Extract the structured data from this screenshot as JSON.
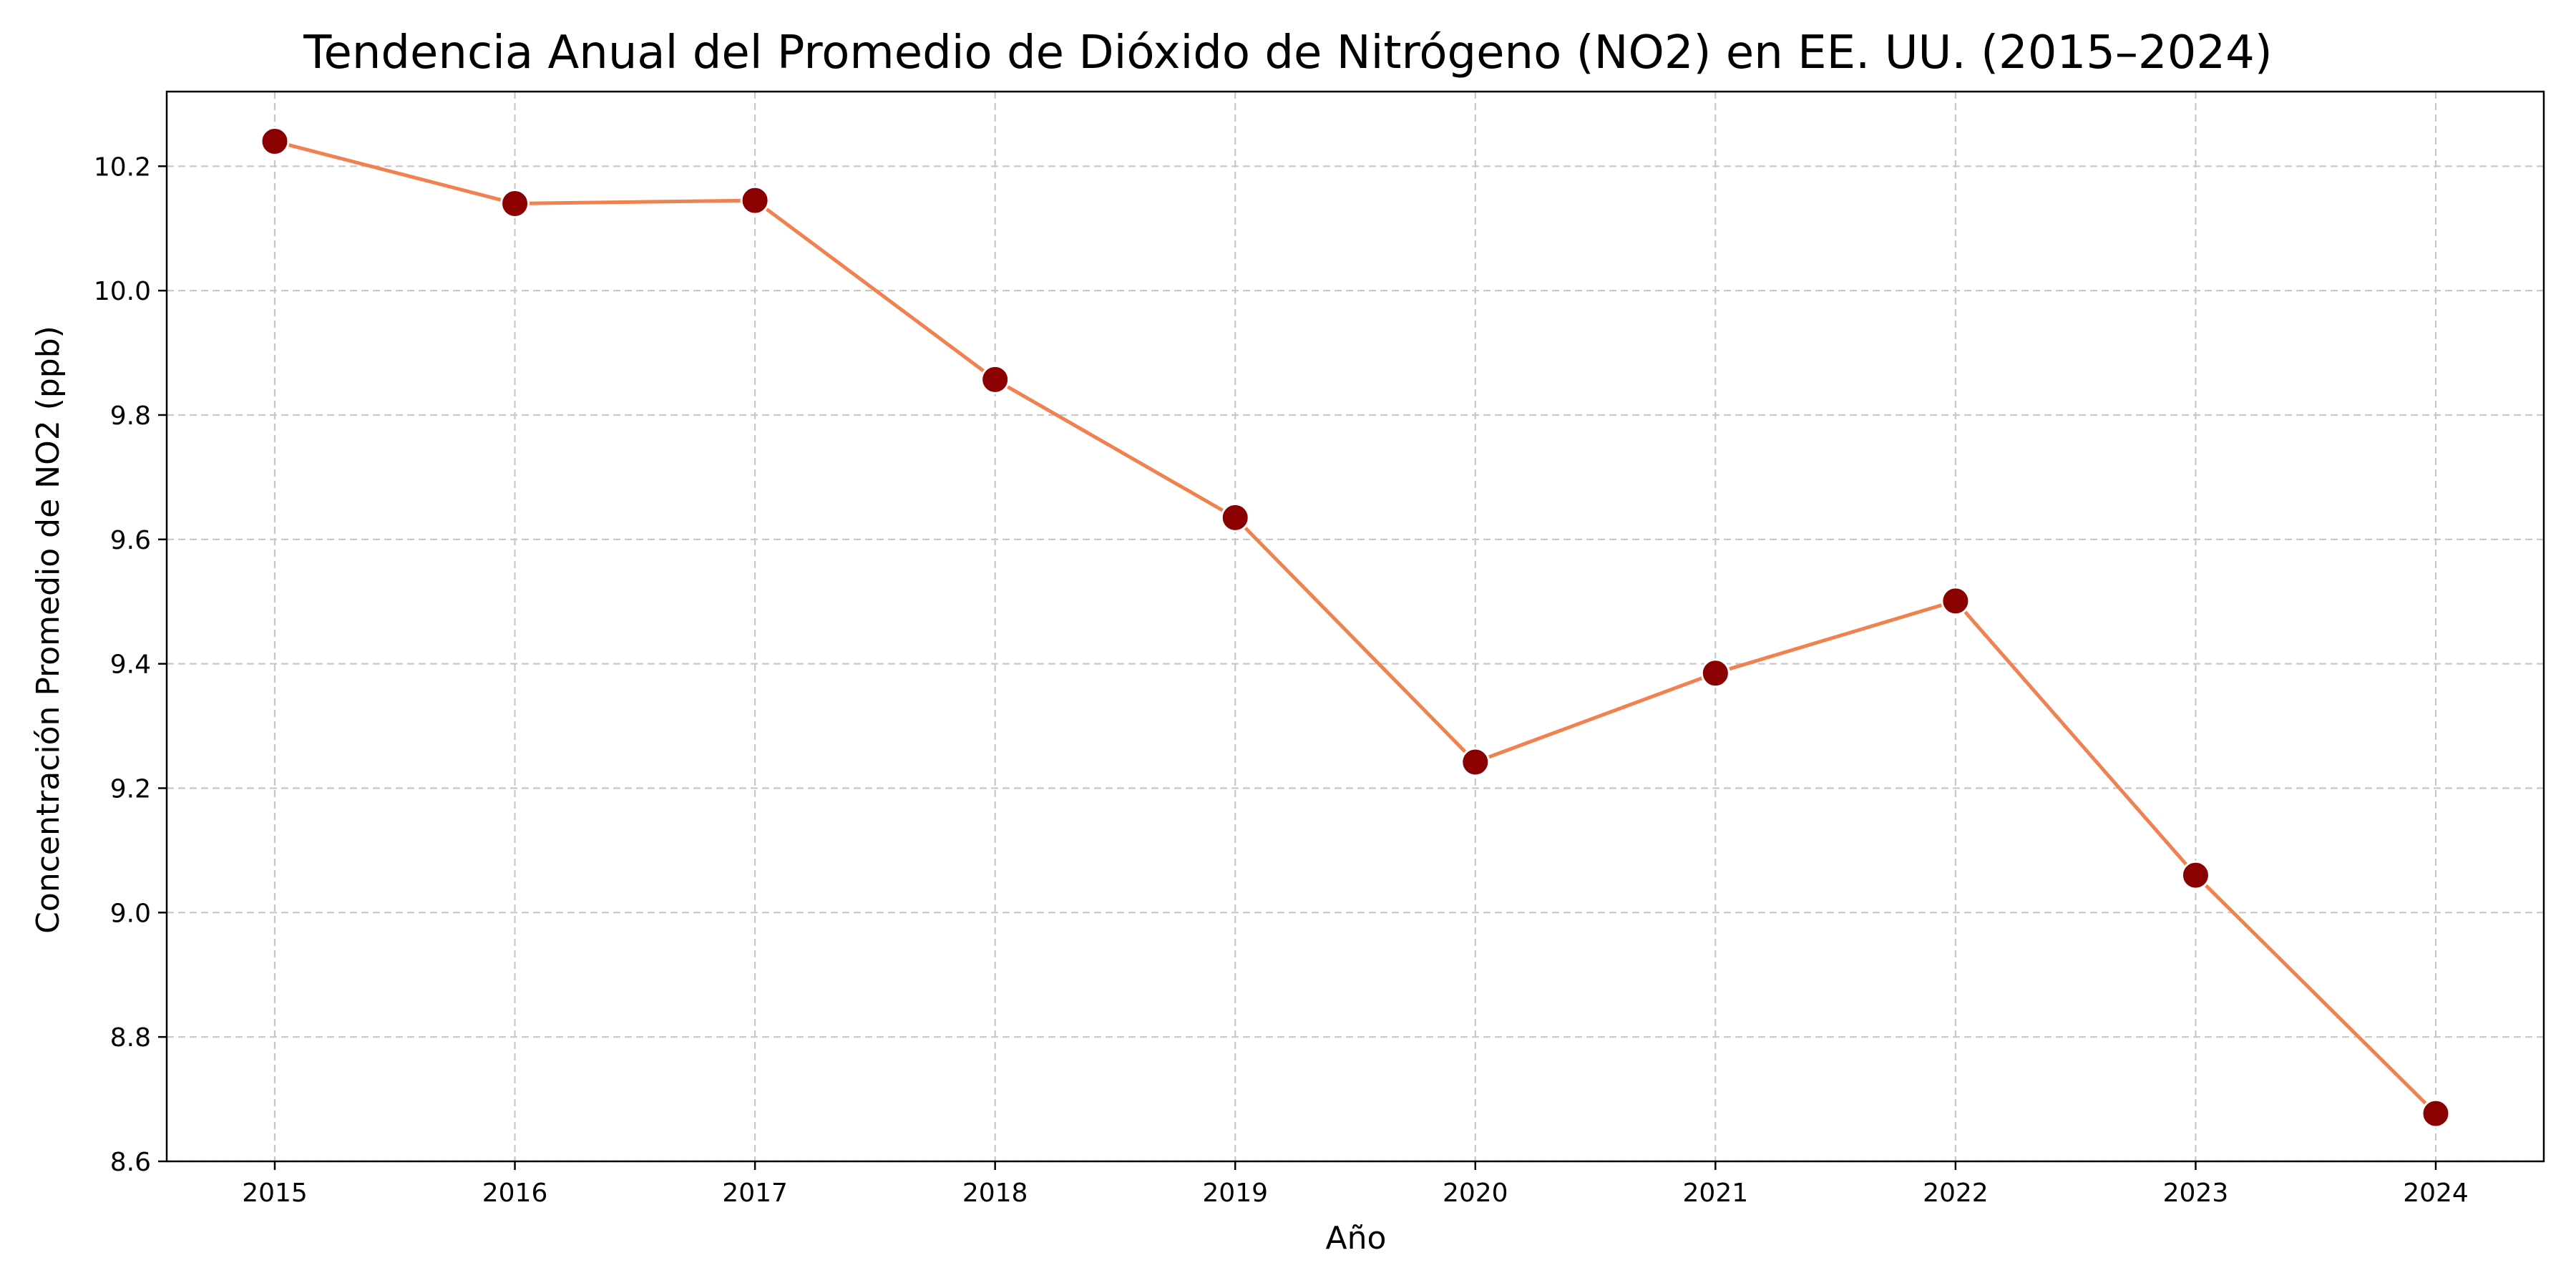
{
  "chart_data": {
    "type": "line",
    "title": "Tendencia Anual del Promedio de Dióxido de Nitrógeno (NO2) en EE. UU. (2015–2024)",
    "xlabel": "Año",
    "ylabel": "Concentración Promedio de NO2 (ppb)",
    "x": [
      2015,
      2016,
      2017,
      2018,
      2019,
      2020,
      2021,
      2022,
      2023,
      2024
    ],
    "x_tick_labels": [
      "2015",
      "2016",
      "2017",
      "2018",
      "2019",
      "2020",
      "2021",
      "2022",
      "2023",
      "2024"
    ],
    "series": [
      {
        "values": [
          10.24,
          10.14,
          10.145,
          9.857,
          9.635,
          9.242,
          9.385,
          9.501,
          9.06,
          8.677
        ]
      }
    ],
    "ylim": [
      8.6,
      10.32
    ],
    "xlim": [
      2014.55,
      2024.45
    ],
    "y_ticks": [
      8.6,
      8.8,
      9.0,
      9.2,
      9.4,
      9.6,
      9.8,
      10.0,
      10.2
    ],
    "y_tick_labels": [
      "8.6",
      "8.8",
      "9.0",
      "9.2",
      "9.4",
      "9.6",
      "9.8",
      "10.0",
      "10.2"
    ],
    "grid": true,
    "grid_style": "dashed",
    "colors": {
      "line": "#f08150",
      "marker_fill": "#8b0000",
      "marker_edge": "#ffffff",
      "grid": "#c8c8c8",
      "axis": "#000000"
    }
  }
}
